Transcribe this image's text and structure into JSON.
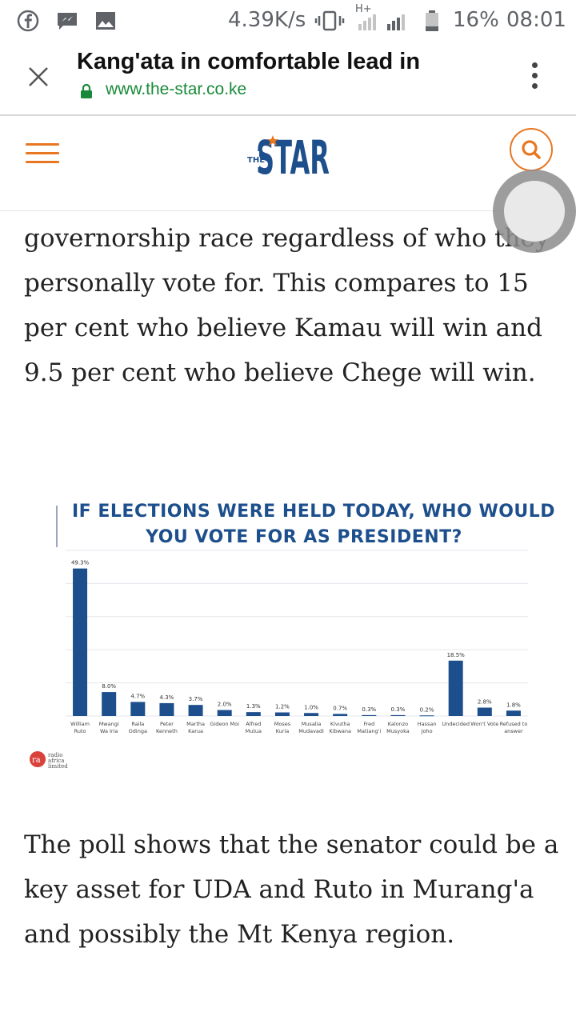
{
  "status_bar": {
    "speed": "4.39K/s",
    "network": "H+",
    "battery": "16%",
    "time": "08:01",
    "icons": [
      "facebook-icon",
      "messenger-icon",
      "gallery-icon",
      "vibrate-icon",
      "signal-icon",
      "battery-icon"
    ]
  },
  "browser": {
    "title": "Kang'ata in comfortable lead in",
    "url": "www.the-star.co.ke"
  },
  "site": {
    "logo_main": "STAR",
    "logo_prefix": "THE",
    "brand_color": "#1d4f8c",
    "accent_color": "#e87722"
  },
  "article": {
    "paragraph_1": "governorship race regardless of who they personally vote for. This compares to 15 per cent who believe Kamau will win and 9.5 per cent who believe Chege will win.",
    "paragraph_2": "The poll shows that the senator could be a key asset for UDA and Ruto in Murang'a and possibly the Mt Kenya region."
  },
  "chart_data": {
    "type": "bar",
    "title_lines": [
      "IF ELECTIONS WERE HELD TODAY, WHO WOULD",
      "YOU VOTE FOR AS PRESIDENT?"
    ],
    "categories": [
      [
        "William",
        "Ruto"
      ],
      [
        "Mwangi",
        "Wa Iria"
      ],
      [
        "Raila",
        "Odinga"
      ],
      [
        "Peter",
        "Kenneth"
      ],
      [
        "Martha",
        "Karua"
      ],
      [
        "Gideon Moi"
      ],
      [
        "Alfred",
        "Mutua"
      ],
      [
        "Moses",
        "Kuria"
      ],
      [
        "Musalia",
        "Mudavadi"
      ],
      [
        "Kivutha",
        "Kibwana"
      ],
      [
        "Fred",
        "Matiang'i"
      ],
      [
        "Kalonzo",
        "Musyoka"
      ],
      [
        "Hassan",
        "Joho"
      ],
      [
        "Undecided"
      ],
      [
        "Won't Vote"
      ],
      [
        "Refused to",
        "answer"
      ]
    ],
    "values": [
      49.3,
      8.0,
      4.7,
      4.3,
      3.7,
      2.0,
      1.3,
      1.2,
      1.0,
      0.7,
      0.3,
      0.3,
      0.2,
      18.5,
      2.8,
      1.8
    ],
    "value_labels": [
      "49.3%",
      "8.0%",
      "4.7%",
      "4.3%",
      "3.7%",
      "2.0%",
      "1.3%",
      "1.2%",
      "1.0%",
      "0.7%",
      "0.3%",
      "0.3%",
      "0.2%",
      "18.5%",
      "2.8%",
      "1.8%"
    ],
    "ylim": [
      0,
      50
    ],
    "grid": true,
    "bar_color": "#1d4f8c",
    "source_logo_text": "radio africa limited"
  }
}
